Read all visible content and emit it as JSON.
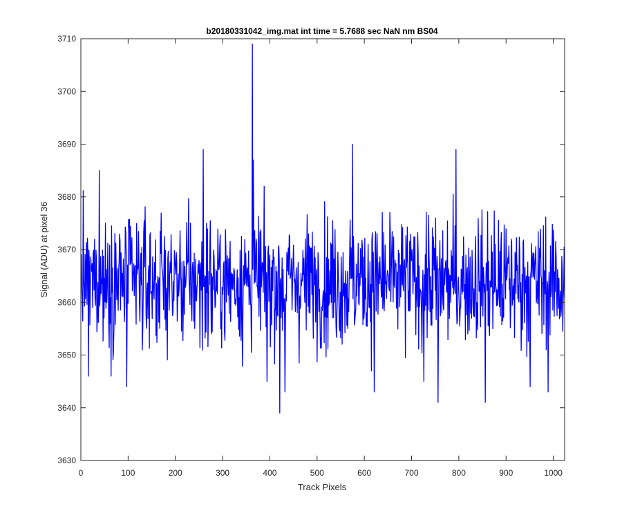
{
  "chart_data": {
    "type": "line",
    "title": "b20180331042_img.mat int time = 5.7688 sec  NaN nm BS04",
    "xlabel": "Track Pixels",
    "ylabel": "Signal (ADU) at pixel 36",
    "xlim": [
      0,
      1024
    ],
    "ylim": [
      3630,
      3710
    ],
    "xticks": [
      0,
      100,
      200,
      300,
      400,
      500,
      600,
      700,
      800,
      900,
      1000
    ],
    "yticks": [
      3630,
      3640,
      3650,
      3660,
      3670,
      3680,
      3690,
      3700,
      3710
    ],
    "grid": false,
    "legend": "none",
    "series": [
      {
        "color": "#0000ff",
        "n_points": 1024,
        "mean_level": 3664,
        "noise_std_estimate": 6,
        "notable_points": [
          {
            "x": 15,
            "y": 3646
          },
          {
            "x": 38,
            "y": 3685
          },
          {
            "x": 96,
            "y": 3644
          },
          {
            "x": 258,
            "y": 3689
          },
          {
            "x": 362,
            "y": 3709
          },
          {
            "x": 364,
            "y": 3687
          },
          {
            "x": 393,
            "y": 3645
          },
          {
            "x": 420,
            "y": 3639
          },
          {
            "x": 431,
            "y": 3643
          },
          {
            "x": 574,
            "y": 3690
          },
          {
            "x": 620,
            "y": 3643
          },
          {
            "x": 725,
            "y": 3645
          },
          {
            "x": 793,
            "y": 3689
          },
          {
            "x": 755,
            "y": 3641
          },
          {
            "x": 855,
            "y": 3641
          },
          {
            "x": 950,
            "y": 3644
          },
          {
            "x": 988,
            "y": 3643
          }
        ]
      }
    ]
  },
  "style": {
    "line_color": "#0000ff",
    "axis_color": "#262626",
    "background": "#ffffff"
  }
}
